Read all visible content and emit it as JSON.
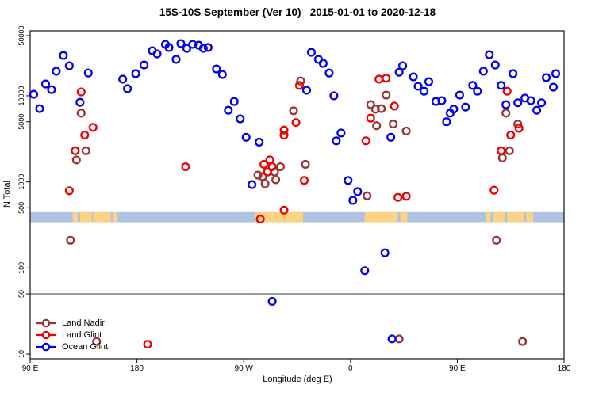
{
  "title": "15S-10S September (Ver 10)   2015-01-01 to 2020-12-18",
  "chart_data": {
    "type": "scatter",
    "xlabel": "Longitude (deg E)",
    "ylabel": "N Total",
    "y_scale": "log",
    "ylim": [
      10,
      50000
    ],
    "y_ticks": [
      50000,
      10000,
      5000,
      1000,
      500,
      100,
      50,
      10
    ],
    "x_axis": {
      "description": "longitude wrapping eastward from 90E, units are degrees east of left edge",
      "range_deg": [
        0,
        450
      ],
      "ticks": [
        {
          "deg": 0,
          "label": "90 E"
        },
        {
          "deg": 90,
          "label": "180"
        },
        {
          "deg": 180,
          "label": "90 W"
        },
        {
          "deg": 270,
          "label": "0"
        },
        {
          "deg": 360,
          "label": "90 E"
        },
        {
          "deg": 450,
          "label": "180"
        }
      ]
    },
    "reference_line_n": 50,
    "map_band": {
      "n_range": [
        340,
        445
      ],
      "ocean_color": "#aec3e2",
      "land_color": "#fcd385",
      "land_segments_deg": [
        [
          36,
          40
        ],
        [
          42,
          52
        ],
        [
          53,
          68
        ],
        [
          70,
          73
        ],
        [
          190,
          230
        ],
        [
          282,
          310
        ],
        [
          312,
          318
        ],
        [
          384,
          388
        ],
        [
          390,
          400
        ],
        [
          402,
          416
        ],
        [
          418,
          424
        ]
      ]
    },
    "legend_position": "bottom-left",
    "series": [
      {
        "name": "Land Nadir",
        "color": "#993333",
        "points": [
          [
            43,
            6300
          ],
          [
            47,
            2300
          ],
          [
            39,
            1800
          ],
          [
            34,
            210
          ],
          [
            56,
            14
          ],
          [
            228,
            14900
          ],
          [
            222,
            6700
          ],
          [
            211,
            1500
          ],
          [
            206,
            1300
          ],
          [
            192,
            1200
          ],
          [
            196,
            1150
          ],
          [
            207,
            1060
          ],
          [
            198,
            950
          ],
          [
            232,
            1600
          ],
          [
            300,
            10200
          ],
          [
            287,
            7900
          ],
          [
            291,
            7000
          ],
          [
            296,
            7100
          ],
          [
            292,
            4500
          ],
          [
            306,
            4700
          ],
          [
            317,
            3900
          ],
          [
            284,
            690
          ],
          [
            311,
            15
          ],
          [
            411,
            4700
          ],
          [
            401,
            6300
          ],
          [
            404,
            2300
          ],
          [
            398,
            1900
          ],
          [
            393,
            210
          ],
          [
            415,
            14
          ]
        ]
      },
      {
        "name": "Land Glint",
        "color": "#ee0000",
        "points": [
          [
            43,
            11100
          ],
          [
            53,
            4300
          ],
          [
            46,
            3500
          ],
          [
            38,
            2300
          ],
          [
            33,
            790
          ],
          [
            99,
            13
          ],
          [
            131,
            1500
          ],
          [
            194,
            370
          ],
          [
            214,
            470
          ],
          [
            202,
            1800
          ],
          [
            197,
            1600
          ],
          [
            204,
            1500
          ],
          [
            200,
            1300
          ],
          [
            231,
            1040
          ],
          [
            214,
            4000
          ],
          [
            214,
            3500
          ],
          [
            224,
            4900
          ],
          [
            227,
            13200
          ],
          [
            294,
            15600
          ],
          [
            300,
            16000
          ],
          [
            307,
            7600
          ],
          [
            287,
            5500
          ],
          [
            283,
            3000
          ],
          [
            310,
            660
          ],
          [
            317,
            680
          ],
          [
            402,
            11300
          ],
          [
            412,
            4200
          ],
          [
            405,
            3500
          ],
          [
            397,
            2300
          ],
          [
            391,
            800
          ]
        ]
      },
      {
        "name": "Ocean Glint",
        "color": "#0000ee",
        "points": [
          [
            3,
            10400
          ],
          [
            8,
            7100
          ],
          [
            13,
            13700
          ],
          [
            18,
            11800
          ],
          [
            22,
            19300
          ],
          [
            28,
            29400
          ],
          [
            33,
            22300
          ],
          [
            42,
            8400
          ],
          [
            49,
            18400
          ],
          [
            78,
            15600
          ],
          [
            82,
            12100
          ],
          [
            89,
            18100
          ],
          [
            96,
            22800
          ],
          [
            103,
            33400
          ],
          [
            107,
            30700
          ],
          [
            114,
            39600
          ],
          [
            117,
            36400
          ],
          [
            123,
            26500
          ],
          [
            127,
            40400
          ],
          [
            132,
            35600
          ],
          [
            137,
            39600
          ],
          [
            142,
            38700
          ],
          [
            146,
            35600
          ],
          [
            150,
            36400
          ],
          [
            157,
            20500
          ],
          [
            162,
            17700
          ],
          [
            167,
            6800
          ],
          [
            172,
            8600
          ],
          [
            177,
            5400
          ],
          [
            182,
            3300
          ],
          [
            193,
            2900
          ],
          [
            187,
            930
          ],
          [
            233,
            11600
          ],
          [
            237,
            32000
          ],
          [
            243,
            26500
          ],
          [
            247,
            23800
          ],
          [
            252,
            18400
          ],
          [
            256,
            10000
          ],
          [
            262,
            3700
          ],
          [
            258,
            3000
          ],
          [
            268,
            1040
          ],
          [
            276,
            770
          ],
          [
            272,
            610
          ],
          [
            299,
            150
          ],
          [
            282,
            93
          ],
          [
            204,
            41
          ],
          [
            305,
            15
          ],
          [
            304,
            3300
          ],
          [
            311,
            18800
          ],
          [
            314,
            22300
          ],
          [
            323,
            16600
          ],
          [
            327,
            12900
          ],
          [
            332,
            11300
          ],
          [
            336,
            14600
          ],
          [
            342,
            8600
          ],
          [
            347,
            8800
          ],
          [
            351,
            5000
          ],
          [
            354,
            6300
          ],
          [
            357,
            7000
          ],
          [
            362,
            10200
          ],
          [
            367,
            7400
          ],
          [
            373,
            13200
          ],
          [
            377,
            11300
          ],
          [
            382,
            19300
          ],
          [
            387,
            30000
          ],
          [
            392,
            22800
          ],
          [
            397,
            13200
          ],
          [
            401,
            7900
          ],
          [
            407,
            18100
          ],
          [
            411,
            8300
          ],
          [
            417,
            9400
          ],
          [
            422,
            8800
          ],
          [
            427,
            6800
          ],
          [
            431,
            8300
          ],
          [
            435,
            16300
          ],
          [
            441,
            12600
          ],
          [
            443,
            18100
          ]
        ]
      }
    ]
  }
}
